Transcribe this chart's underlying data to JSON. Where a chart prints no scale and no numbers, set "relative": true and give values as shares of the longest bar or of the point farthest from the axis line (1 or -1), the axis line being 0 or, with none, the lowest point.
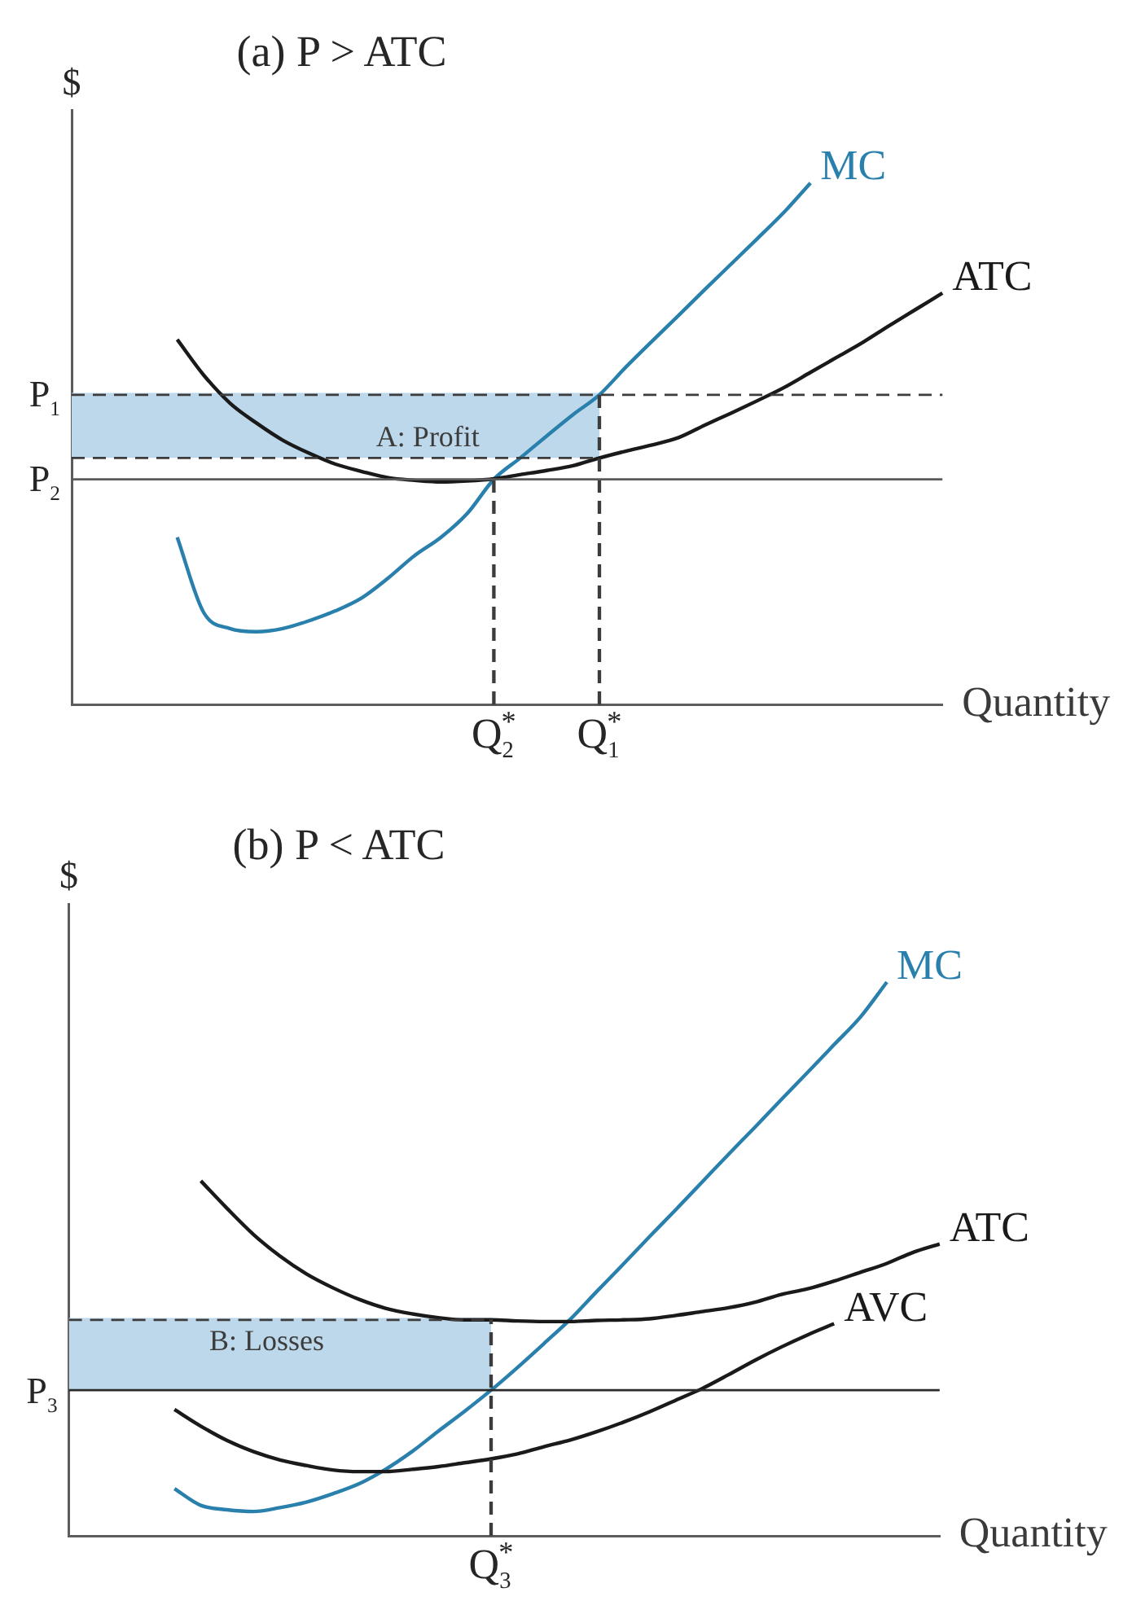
{
  "chart_data": [
    {
      "type": "line",
      "title": "(a) P > ATC",
      "ylabel": "$",
      "xlabel": "Quantity",
      "relative": true,
      "categories": [
        null,
        null,
        null,
        null,
        null,
        null,
        null,
        null,
        null,
        null,
        null,
        null,
        null,
        null,
        null,
        null,
        "Q$_{2}$$^{*}$",
        null,
        null,
        null,
        "Q$_{1}$$^{*}$",
        null,
        null,
        null,
        null,
        null,
        null,
        null,
        null,
        null,
        null,
        null,
        null,
        null
      ],
      "series": [
        {
          "color": "#bed8eb",
          "values": [
            0.594,
            0.594,
            0.594,
            0.594,
            0.594,
            0.594,
            0.594,
            0.594,
            0.594,
            0.594,
            0.594,
            0.594,
            0.594,
            0.594,
            0.594,
            0.594,
            0.594,
            0.594,
            0.594,
            0.594,
            0.594,
            null,
            null,
            null,
            null,
            null,
            null,
            null,
            null,
            null,
            null,
            null,
            null,
            null
          ],
          "lower": [
            0.473,
            0.473,
            0.473,
            0.473,
            0.473,
            0.473,
            0.473,
            0.473,
            0.473,
            0.473,
            0.473,
            0.473,
            0.473,
            0.473,
            0.473,
            0.473,
            0.473,
            0.473,
            0.473,
            0.473,
            0.473,
            null,
            null,
            null,
            null,
            null,
            null,
            null,
            null,
            null,
            null,
            null,
            null,
            null
          ],
          "upper": [
            0.594,
            0.594,
            0.594,
            0.594,
            0.594,
            0.594,
            0.594,
            0.594,
            0.594,
            0.594,
            0.594,
            0.594,
            0.594,
            0.594,
            0.594,
            0.594,
            0.594,
            0.594,
            0.594,
            0.594,
            0.594,
            null,
            null,
            null,
            null,
            null,
            null,
            null,
            null,
            null,
            null,
            null,
            null,
            null
          ]
        },
        {
          "name": "MC",
          "color": "#2a80ad",
          "values": [
            null,
            null,
            null,
            null,
            0.321,
            0.177,
            0.146,
            0.14,
            0.146,
            0.161,
            0.18,
            0.205,
            0.243,
            0.286,
            0.321,
            0.367,
            0.432,
            0.473,
            0.515,
            0.556,
            0.594,
            0.647,
            0.697,
            0.746,
            0.796,
            0.845,
            0.894,
            0.944,
            1,
            null,
            null,
            null,
            null,
            null
          ]
        },
        {
          "name": "ATC",
          "color": "#1a1a1a",
          "values": [
            null,
            null,
            null,
            null,
            0.7,
            0.632,
            0.578,
            0.54,
            0.507,
            0.482,
            0.461,
            0.447,
            0.435,
            0.43,
            0.427,
            0.429,
            0.433,
            0.441,
            0.449,
            0.458,
            0.473,
            0.486,
            0.498,
            0.512,
            0.536,
            0.559,
            0.583,
            0.608,
            0.637,
            0.666,
            0.695,
            0.727,
            0.758,
            0.789
          ]
        },
        {
          "name": "A: Profit",
          "color": "#3c3c3c",
          "line_style": "dashed",
          "values": [
            0.473,
            0.473,
            0.473,
            0.473,
            0.473,
            0.473,
            0.473,
            0.473,
            0.473,
            0.473,
            0.473,
            0.473,
            0.473,
            0.473,
            0.473,
            0.473,
            0.473,
            0.473,
            0.473,
            0.473,
            0.473,
            null,
            null,
            null,
            null,
            null,
            null,
            null,
            null,
            null,
            null,
            null,
            null,
            null
          ]
        },
        {
          "type": "bar",
          "color": "#3c3c3c",
          "line_style": "dashed",
          "values": [
            null,
            null,
            null,
            null,
            null,
            null,
            null,
            null,
            null,
            null,
            null,
            null,
            null,
            null,
            null,
            null,
            0.432,
            null,
            null,
            null,
            0.594,
            null,
            null,
            null,
            null,
            null,
            null,
            null,
            null,
            null,
            null,
            null,
            null,
            null
          ]
        }
      ],
      "ref_lines": [
        {
          "axis": "y",
          "value": 0.594,
          "label": "P$_{1}$",
          "color": "#3c3c3c",
          "line_style": "dashed"
        },
        {
          "axis": "y",
          "value": 0.432,
          "label": "P$_{2}$",
          "color": "#5a5a5a"
        }
      ]
    },
    {
      "type": "line",
      "title": "(b) P < ATC",
      "ylabel": "$",
      "xlabel": "Quantity",
      "relative": true,
      "categories": [
        null,
        null,
        null,
        null,
        null,
        null,
        null,
        null,
        null,
        null,
        null,
        null,
        null,
        null,
        null,
        null,
        null,
        null,
        null,
        null,
        null,
        null,
        null,
        null,
        null,
        null,
        null,
        null,
        null,
        null,
        null,
        null,
        null,
        null
      ],
      "series": [
        {
          "color": "#bed8eb",
          "values": [
            0.39,
            0.39,
            0.39,
            0.39,
            0.39,
            0.39,
            0.39,
            0.39,
            0.39,
            0.39,
            0.39,
            0.39,
            0.39,
            0.39,
            0.39,
            0.39,
            0.39,
            null,
            null,
            null,
            null,
            null,
            null,
            null,
            null,
            null,
            null,
            null,
            null,
            null,
            null,
            null,
            null,
            null
          ],
          "lower": [
            0.263,
            0.263,
            0.263,
            0.263,
            0.263,
            0.263,
            0.263,
            0.263,
            0.263,
            0.263,
            0.263,
            0.263,
            0.263,
            0.263,
            0.263,
            0.263,
            0.263,
            null,
            null,
            null,
            null,
            null,
            null,
            null,
            null,
            null,
            null,
            null,
            null,
            null,
            null,
            null,
            null,
            null
          ],
          "upper": [
            0.39,
            0.39,
            0.39,
            0.39,
            0.39,
            0.39,
            0.39,
            0.39,
            0.39,
            0.39,
            0.39,
            0.39,
            0.39,
            0.39,
            0.39,
            0.39,
            0.39,
            null,
            null,
            null,
            null,
            null,
            null,
            null,
            null,
            null,
            null,
            null,
            null,
            null,
            null,
            null,
            null,
            null
          ]
        },
        {
          "name": "MC",
          "color": "#2a80ad",
          "values": [
            null,
            null,
            null,
            null,
            0.085,
            0.055,
            0.047,
            0.044,
            0.051,
            0.061,
            0.076,
            0.094,
            0.12,
            0.152,
            0.189,
            0.225,
            0.263,
            0.304,
            0.347,
            0.391,
            0.441,
            0.49,
            0.54,
            0.589,
            0.639,
            0.689,
            0.738,
            0.788,
            0.837,
            0.887,
            0.937,
            1,
            null,
            null
          ]
        },
        {
          "name": "ATC",
          "color": "#1a1a1a",
          "values": [
            null,
            null,
            null,
            null,
            null,
            0.641,
            0.591,
            0.544,
            0.505,
            0.473,
            0.448,
            0.427,
            0.411,
            0.401,
            0.394,
            0.39,
            0.39,
            0.388,
            0.387,
            0.387,
            0.389,
            0.39,
            0.392,
            0.398,
            0.405,
            0.412,
            0.422,
            0.436,
            0.446,
            0.46,
            0.476,
            0.492,
            0.512,
            0.527
          ]
        },
        {
          "name": "AVC",
          "color": "#1a1a1a",
          "values": [
            null,
            null,
            null,
            null,
            0.228,
            0.198,
            0.172,
            0.152,
            0.137,
            0.127,
            0.119,
            0.116,
            0.116,
            0.12,
            0.125,
            0.132,
            0.139,
            0.148,
            0.161,
            0.173,
            0.188,
            0.205,
            0.224,
            0.245,
            0.266,
            0.291,
            0.317,
            0.341,
            0.363,
            0.383,
            null,
            null,
            null,
            null
          ]
        },
        {
          "name": "B: Losses",
          "color": "#3c3c3c",
          "line_style": "dashed",
          "values": [
            0.39,
            0.39,
            0.39,
            0.39,
            0.39,
            0.39,
            0.39,
            0.39,
            0.39,
            0.39,
            0.39,
            0.39,
            0.39,
            0.39,
            0.39,
            0.39,
            0.39,
            null,
            null,
            null,
            null,
            null,
            null,
            null,
            null,
            null,
            null,
            null,
            null,
            null,
            null,
            null,
            null,
            null
          ]
        },
        {
          "type": "bar",
          "color": "#3c3c3c",
          "line_style": "dashed",
          "values": [
            null,
            null,
            null,
            null,
            null,
            null,
            null,
            null,
            null,
            null,
            null,
            null,
            null,
            null,
            null,
            null,
            0.39,
            null,
            null,
            null,
            null,
            null,
            null,
            null,
            null,
            null,
            null,
            null,
            null,
            null,
            null,
            null,
            null,
            null
          ]
        }
      ],
      "ref_lines": [
        {
          "axis": "y",
          "value": 0.263,
          "label": "P$_{3}$",
          "color": "#2a2a2a"
        }
      ],
      "annotations": [
        "Q$_{3}$$^{*}$"
      ]
    }
  ]
}
